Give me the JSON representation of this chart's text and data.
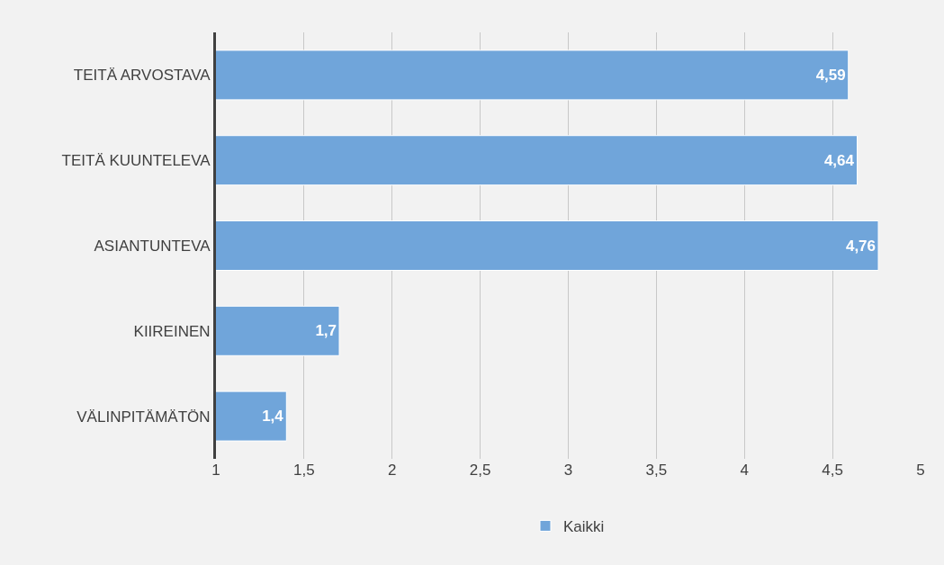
{
  "chart_data": {
    "type": "bar",
    "orientation": "horizontal",
    "categories": [
      "TEITÄ ARVOSTAVA",
      "TEITÄ KUUNTELEVA",
      "ASIANTUNTEVA",
      "KIIREINEN",
      "VÄLINPITÄMÄTÖN"
    ],
    "series": [
      {
        "name": "Kaikki",
        "color": "#70a5da",
        "values": [
          4.59,
          4.64,
          4.76,
          1.7,
          1.4
        ],
        "value_labels": [
          "4,59",
          "4,64",
          "4,76",
          "1,7",
          "1,4"
        ]
      }
    ],
    "xlim": [
      1,
      5
    ],
    "xticks": [
      1,
      {
        "value": 1.5,
        "label": "1,5"
      },
      2,
      {
        "value": 2.5,
        "label": "2,5"
      },
      3,
      {
        "value": 3.5,
        "label": "3,5"
      },
      4,
      {
        "value": 4.5,
        "label": "4,5"
      },
      5
    ],
    "grid": "x",
    "legend": "bottom"
  }
}
